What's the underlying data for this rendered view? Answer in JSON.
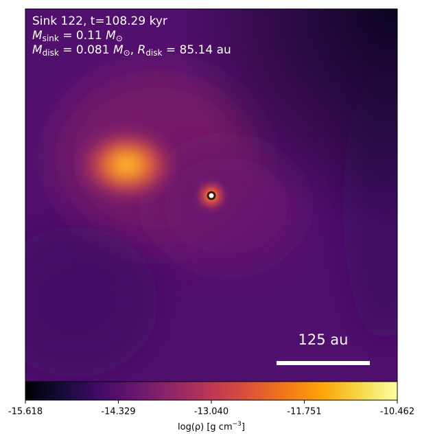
{
  "chart_data": {
    "type": "image",
    "annotations": [
      [
        {
          "text": "Sink 122, t=108.29 kyr"
        }
      ],
      [
        {
          "text": "M"
        },
        {
          "text": "sink",
          "sub": true
        },
        {
          "text": " = 0.11 "
        },
        {
          "text": "M"
        },
        {
          "text": "⊙",
          "sub": true
        }
      ],
      [
        {
          "text": "M"
        },
        {
          "text": "disk",
          "sub": true
        },
        {
          "text": " = 0.081 "
        },
        {
          "text": "M"
        },
        {
          "text": "⊙",
          "sub": true
        },
        {
          "text": ", "
        },
        {
          "text": "R"
        },
        {
          "text": "disk",
          "sub": true
        },
        {
          "text": " = 85.14 au"
        }
      ]
    ],
    "scale_bar": {
      "label": "125 au"
    },
    "colormap": "inferno",
    "clim": [
      -15.618,
      -10.462
    ],
    "cticks": [
      -15.618,
      -14.329,
      -13.04,
      -11.751,
      -10.462
    ],
    "ctick_labels": [
      "-15.618",
      "-14.329",
      "-13.040",
      "-11.751",
      "-10.462"
    ],
    "colorbar_label": [
      {
        "text": "log(ρ) [g cm"
      },
      {
        "text": "−3",
        "sup": true
      },
      {
        "text": "]"
      }
    ]
  }
}
